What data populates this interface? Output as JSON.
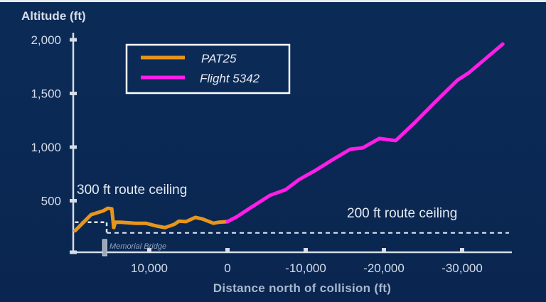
{
  "chart_data": {
    "type": "line",
    "title": "Altitude (ft)",
    "xlabel": "Distance north of collision (ft)",
    "ylabel": "Altitude (ft)",
    "xlim": [
      20000,
      -36000
    ],
    "ylim": [
      0,
      2000
    ],
    "x_reversed": true,
    "grid": false,
    "legend_position": "top-center",
    "xticks": [
      10000,
      0,
      -10000,
      -20000,
      -30000
    ],
    "xtick_labels": [
      "10,000",
      "0",
      "-10,000",
      "-20,000",
      "-30,000"
    ],
    "yticks": [
      0,
      500,
      1000,
      1500,
      2000
    ],
    "ytick_labels": [
      "",
      "500",
      "1,000",
      "1,500",
      "2,000"
    ],
    "series": [
      {
        "name": "PAT25",
        "color": "#e8961a",
        "x": [
          19500,
          18400,
          17450,
          15900,
          15300,
          14800,
          14550,
          14350,
          13650,
          11800,
          10450,
          9100,
          8000,
          6800,
          6200,
          5300,
          4100,
          3200,
          1800,
          1100,
          0
        ],
        "y": [
          220,
          300,
          370,
          405,
          430,
          425,
          250,
          300,
          300,
          290,
          290,
          265,
          250,
          280,
          310,
          305,
          345,
          330,
          290,
          300,
          305
        ]
      },
      {
        "name": "Flight 5342",
        "color": "#ff1de8",
        "x": [
          0,
          -1180,
          -3000,
          -5450,
          -7450,
          -9100,
          -11200,
          -13400,
          -15700,
          -17300,
          -19400,
          -21500,
          -23900,
          -26600,
          -29400,
          -30900,
          -35200
        ],
        "y": [
          305,
          350,
          437,
          550,
          603,
          695,
          781,
          881,
          980,
          993,
          1080,
          1060,
          1225,
          1424,
          1623,
          1695,
          1960
        ]
      }
    ],
    "annotations": {
      "ceiling_300": {
        "label": "300 ft route ceiling",
        "altitude": 300,
        "from": 19500,
        "to": 15450
      },
      "ceiling_200": {
        "label": "200 ft route ceiling",
        "altitude": 200,
        "from": 15450,
        "to": -36000
      },
      "bridge": {
        "label": "Memorial Bridge",
        "x": 15700
      }
    }
  }
}
